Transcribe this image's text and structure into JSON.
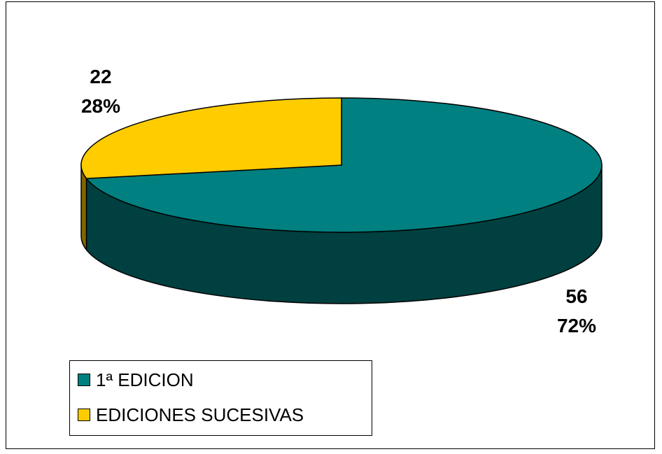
{
  "chart_data": {
    "type": "pie",
    "title": "",
    "categories": [
      "1ª EDICION",
      "EDICIONES SUCESIVAS"
    ],
    "values": [
      56,
      22
    ],
    "percentages": [
      "72%",
      "28%"
    ],
    "value_labels": [
      "56",
      "22"
    ],
    "colors": [
      "#008080",
      "#FFCC00"
    ],
    "side_colors": [
      "#004040",
      "#806600"
    ],
    "legend_position": "bottom-left",
    "three_d": true
  }
}
